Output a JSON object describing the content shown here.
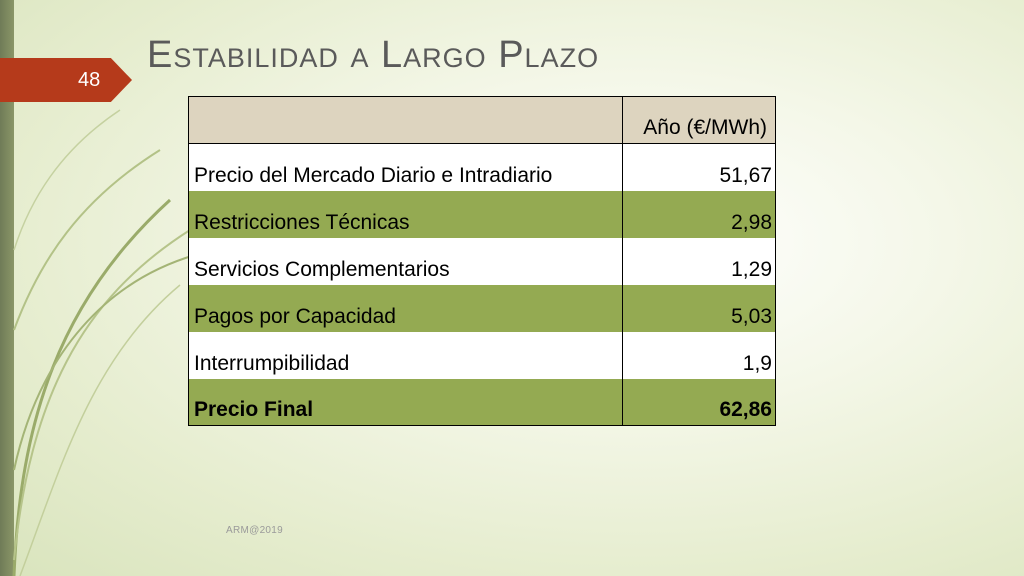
{
  "slide": {
    "title": "Estabilidad a Largo Plazo",
    "page_number": "48",
    "footer": "ARM@2019"
  },
  "table": {
    "header": {
      "col1": "",
      "col2": "Año (€/MWh)"
    },
    "rows": [
      {
        "label": "Precio del Mercado Diario e Intradiario",
        "value": "51,67"
      },
      {
        "label": "Restricciones Técnicas",
        "value": "2,98"
      },
      {
        "label": "Servicios Complementarios",
        "value": "1,29"
      },
      {
        "label": "Pagos por Capacidad",
        "value": "5,03"
      },
      {
        "label": "Interrumpibilidad",
        "value": "1,9"
      },
      {
        "label": "Precio Final",
        "value": "62,86"
      }
    ]
  },
  "colors": {
    "accent_red": "#b53a1b",
    "row_green": "#94aa52",
    "header_beige": "#ddd4bf"
  }
}
